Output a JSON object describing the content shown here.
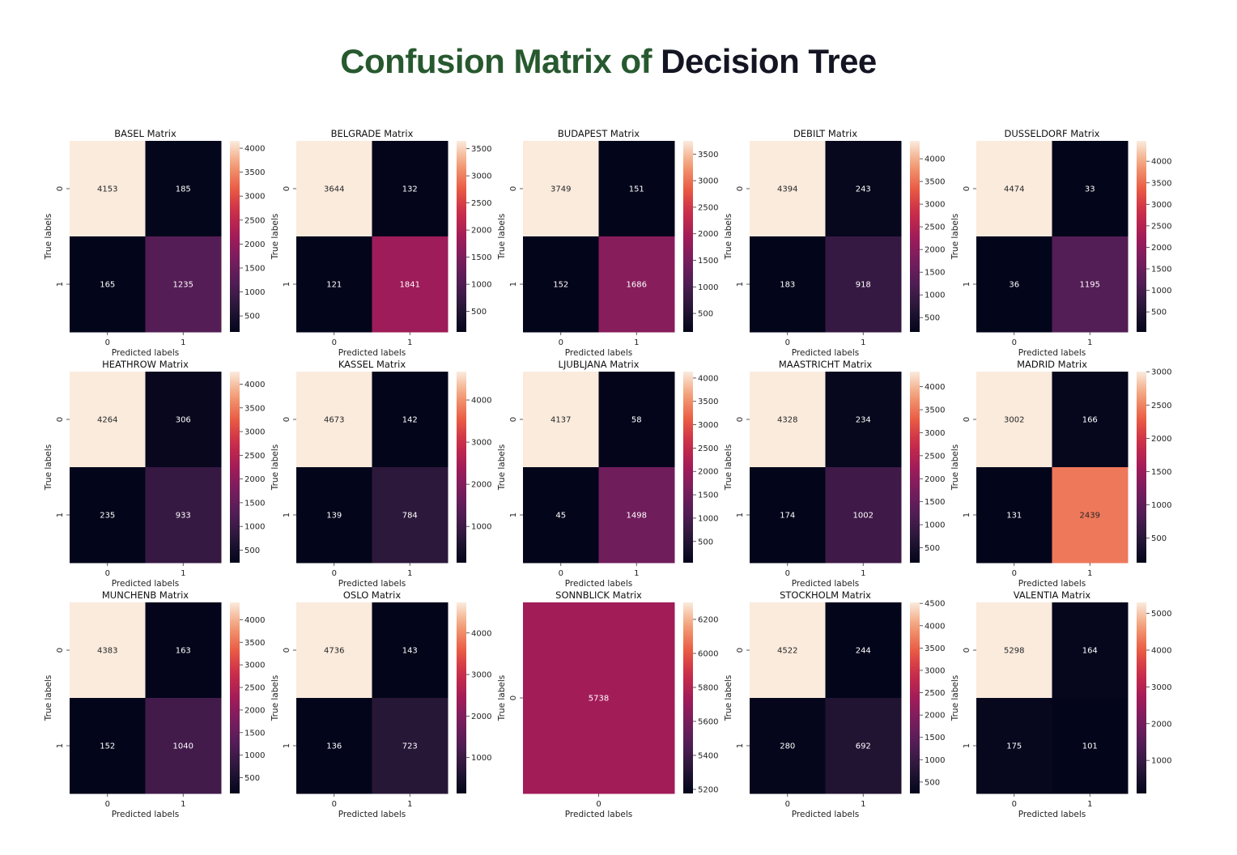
{
  "page": {
    "title_part1": "Confusion Matrix of",
    "title_part2": "Decision Tree"
  },
  "colors": {
    "title_green": "#27592f",
    "title_dark": "#141523",
    "colormap": "rocket"
  },
  "chart_data": [
    {
      "type": "heatmap",
      "title": "BASEL Matrix",
      "xlabel": "Predicted labels",
      "ylabel": "True labels",
      "x_ticks": [
        "0",
        "1"
      ],
      "y_ticks": [
        "0",
        "1"
      ],
      "values": [
        [
          4153,
          185
        ],
        [
          165,
          1235
        ]
      ],
      "colorbar_range": [
        165,
        4153
      ],
      "colorbar_ticks": [
        500,
        1000,
        1500,
        2000,
        2500,
        3000,
        3500,
        4000
      ]
    },
    {
      "type": "heatmap",
      "title": "BELGRADE Matrix",
      "xlabel": "Predicted labels",
      "ylabel": "True labels",
      "x_ticks": [
        "0",
        "1"
      ],
      "y_ticks": [
        "0",
        "1"
      ],
      "values": [
        [
          3644,
          132
        ],
        [
          121,
          1841
        ]
      ],
      "colorbar_range": [
        121,
        3644
      ],
      "colorbar_ticks": [
        500,
        1000,
        1500,
        2000,
        2500,
        3000,
        3500
      ]
    },
    {
      "type": "heatmap",
      "title": "BUDAPEST Matrix",
      "xlabel": "Predicted labels",
      "ylabel": "True labels",
      "x_ticks": [
        "0",
        "1"
      ],
      "y_ticks": [
        "0",
        "1"
      ],
      "values": [
        [
          3749,
          151
        ],
        [
          152,
          1686
        ]
      ],
      "colorbar_range": [
        151,
        3749
      ],
      "colorbar_ticks": [
        500,
        1000,
        1500,
        2000,
        2500,
        3000,
        3500
      ]
    },
    {
      "type": "heatmap",
      "title": "DEBILT Matrix",
      "xlabel": "Predicted labels",
      "ylabel": "True labels",
      "x_ticks": [
        "0",
        "1"
      ],
      "y_ticks": [
        "0",
        "1"
      ],
      "values": [
        [
          4394,
          243
        ],
        [
          183,
          918
        ]
      ],
      "colorbar_range": [
        183,
        4394
      ],
      "colorbar_ticks": [
        500,
        1000,
        1500,
        2000,
        2500,
        3000,
        3500,
        4000
      ]
    },
    {
      "type": "heatmap",
      "title": "DUSSELDORF Matrix",
      "xlabel": "Predicted labels",
      "ylabel": "True labels",
      "x_ticks": [
        "0",
        "1"
      ],
      "y_ticks": [
        "0",
        "1"
      ],
      "values": [
        [
          4474,
          33
        ],
        [
          36,
          1195
        ]
      ],
      "colorbar_range": [
        33,
        4474
      ],
      "colorbar_ticks": [
        500,
        1000,
        1500,
        2000,
        2500,
        3000,
        3500,
        4000
      ]
    },
    {
      "type": "heatmap",
      "title": "HEATHROW Matrix",
      "xlabel": "Predicted labels",
      "ylabel": "True labels",
      "x_ticks": [
        "0",
        "1"
      ],
      "y_ticks": [
        "0",
        "1"
      ],
      "values": [
        [
          4264,
          306
        ],
        [
          235,
          933
        ]
      ],
      "colorbar_range": [
        235,
        4264
      ],
      "colorbar_ticks": [
        500,
        1000,
        1500,
        2000,
        2500,
        3000,
        3500,
        4000
      ]
    },
    {
      "type": "heatmap",
      "title": "KASSEL Matrix",
      "xlabel": "Predicted labels",
      "ylabel": "True labels",
      "x_ticks": [
        "0",
        "1"
      ],
      "y_ticks": [
        "0",
        "1"
      ],
      "values": [
        [
          4673,
          142
        ],
        [
          139,
          784
        ]
      ],
      "colorbar_range": [
        139,
        4673
      ],
      "colorbar_ticks": [
        1000,
        2000,
        3000,
        4000
      ]
    },
    {
      "type": "heatmap",
      "title": "LJUBLJANA Matrix",
      "xlabel": "Predicted labels",
      "ylabel": "True labels",
      "x_ticks": [
        "0",
        "1"
      ],
      "y_ticks": [
        "0",
        "1"
      ],
      "values": [
        [
          4137,
          58
        ],
        [
          45,
          1498
        ]
      ],
      "colorbar_range": [
        45,
        4137
      ],
      "colorbar_ticks": [
        500,
        1000,
        1500,
        2000,
        2500,
        3000,
        3500,
        4000
      ]
    },
    {
      "type": "heatmap",
      "title": "MAASTRICHT Matrix",
      "xlabel": "Predicted labels",
      "ylabel": "True labels",
      "x_ticks": [
        "0",
        "1"
      ],
      "y_ticks": [
        "0",
        "1"
      ],
      "values": [
        [
          4328,
          234
        ],
        [
          174,
          1002
        ]
      ],
      "colorbar_range": [
        174,
        4328
      ],
      "colorbar_ticks": [
        500,
        1000,
        1500,
        2000,
        2500,
        3000,
        3500,
        4000
      ]
    },
    {
      "type": "heatmap",
      "title": "MADRID Matrix",
      "xlabel": "Predicted labels",
      "ylabel": "True labels",
      "x_ticks": [
        "0",
        "1"
      ],
      "y_ticks": [
        "0",
        "1"
      ],
      "values": [
        [
          3002,
          166
        ],
        [
          131,
          2439
        ]
      ],
      "colorbar_range": [
        131,
        3002
      ],
      "colorbar_ticks": [
        500,
        1000,
        1500,
        2000,
        2500,
        3000
      ]
    },
    {
      "type": "heatmap",
      "title": "MUNCHENB Matrix",
      "xlabel": "Predicted labels",
      "ylabel": "True labels",
      "x_ticks": [
        "0",
        "1"
      ],
      "y_ticks": [
        "0",
        "1"
      ],
      "values": [
        [
          4383,
          163
        ],
        [
          152,
          1040
        ]
      ],
      "colorbar_range": [
        152,
        4383
      ],
      "colorbar_ticks": [
        500,
        1000,
        1500,
        2000,
        2500,
        3000,
        3500,
        4000
      ]
    },
    {
      "type": "heatmap",
      "title": "OSLO Matrix",
      "xlabel": "Predicted labels",
      "ylabel": "True labels",
      "x_ticks": [
        "0",
        "1"
      ],
      "y_ticks": [
        "0",
        "1"
      ],
      "values": [
        [
          4736,
          143
        ],
        [
          136,
          723
        ]
      ],
      "colorbar_range": [
        136,
        4736
      ],
      "colorbar_ticks": [
        1000,
        2000,
        3000,
        4000
      ]
    },
    {
      "type": "heatmap",
      "title": "SONNBLICK Matrix",
      "xlabel": "Predicted labels",
      "ylabel": "True labels",
      "x_ticks": [
        "0"
      ],
      "y_ticks": [
        "0"
      ],
      "values": [
        [
          5738
        ]
      ],
      "colorbar_range": [
        5176,
        6300
      ],
      "colorbar_ticks": [
        5200,
        5400,
        5600,
        5800,
        6000,
        6200
      ]
    },
    {
      "type": "heatmap",
      "title": "STOCKHOLM Matrix",
      "xlabel": "Predicted labels",
      "ylabel": "True labels",
      "x_ticks": [
        "0",
        "1"
      ],
      "y_ticks": [
        "0",
        "1"
      ],
      "values": [
        [
          4522,
          244
        ],
        [
          280,
          692
        ]
      ],
      "colorbar_range": [
        244,
        4522
      ],
      "colorbar_ticks": [
        500,
        1000,
        1500,
        2000,
        2500,
        3000,
        3500,
        4000,
        4500
      ]
    },
    {
      "type": "heatmap",
      "title": "VALENTIA Matrix",
      "xlabel": "Predicted labels",
      "ylabel": "True labels",
      "x_ticks": [
        "0",
        "1"
      ],
      "y_ticks": [
        "0",
        "1"
      ],
      "values": [
        [
          5298,
          164
        ],
        [
          175,
          101
        ]
      ],
      "colorbar_range": [
        101,
        5298
      ],
      "colorbar_ticks": [
        1000,
        2000,
        3000,
        4000,
        5000
      ]
    }
  ]
}
